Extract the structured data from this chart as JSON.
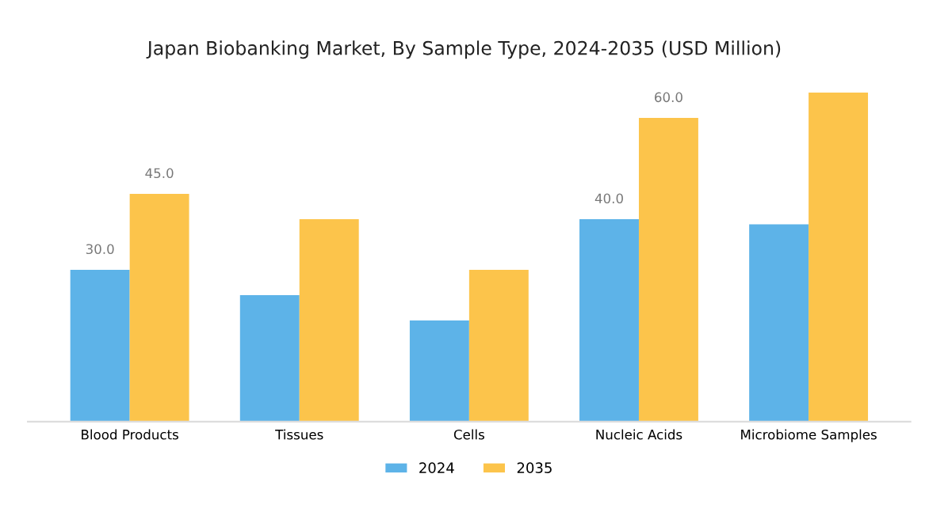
{
  "chart_data": {
    "type": "bar",
    "title": "Japan Biobanking Market, By Sample Type, 2024-2035 (USD Million)",
    "categories": [
      "Blood Products",
      "Tissues",
      "Cells",
      "Nucleic Acids",
      "Microbiome Samples"
    ],
    "series": [
      {
        "name": "2024",
        "color": "#5db3e8",
        "values": [
          30.0,
          25,
          20,
          40.0,
          39
        ],
        "value_labels": [
          "30.0",
          null,
          null,
          "40.0",
          null
        ]
      },
      {
        "name": "2035",
        "color": "#fcc44b",
        "values": [
          45.0,
          40,
          30,
          60.0,
          65
        ],
        "value_labels": [
          "45.0",
          null,
          null,
          "60.0",
          null
        ]
      }
    ],
    "tick_labels": "x",
    "grid": false,
    "legend": "bottom"
  }
}
